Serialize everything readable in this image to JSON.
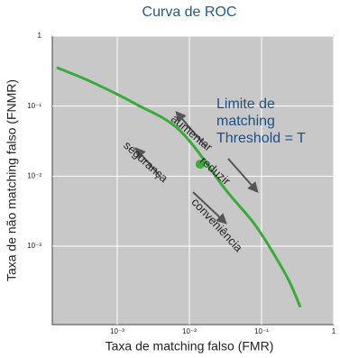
{
  "chart_data": {
    "type": "line",
    "title": "Curva de ROC",
    "x_label": "Taxa de matching falso (FMR)",
    "y_label": "Taxa de não matching falso (FNMR)",
    "log_x": true,
    "log_y": true,
    "grid": true,
    "color": "#3aaa3a",
    "x": [
      0.000145,
      0.000422,
      0.00178,
      0.0075,
      0.0316,
      0.075,
      0.133,
      0.237,
      0.345
    ],
    "values": [
      0.355,
      0.226,
      0.108,
      0.0442,
      0.00646,
      0.00226,
      0.00093,
      0.00033,
      0.000135
    ],
    "marker": {
      "x": 0.0141,
      "y": 0.0148
    },
    "xlim": [
      0.000126,
      1
    ],
    "ylim": [
      7.6e-05,
      1
    ],
    "xticks": [
      {
        "value": 0.001,
        "label": "10⁻³"
      },
      {
        "value": 0.01,
        "label": "10⁻²"
      },
      {
        "value": 0.1,
        "label": "10⁻¹"
      },
      1
    ],
    "yticks": [
      {
        "value": 0.001,
        "label": "10⁻³"
      },
      {
        "value": 0.01,
        "label": "10⁻²"
      },
      {
        "value": 0.1,
        "label": "10⁻¹"
      },
      1
    ],
    "threshold_label": [
      "Limite de",
      "matching",
      "Threshold = T"
    ],
    "arrow_labels": [
      "aumentar",
      "segurança",
      "reduzir",
      "conveniência"
    ]
  }
}
